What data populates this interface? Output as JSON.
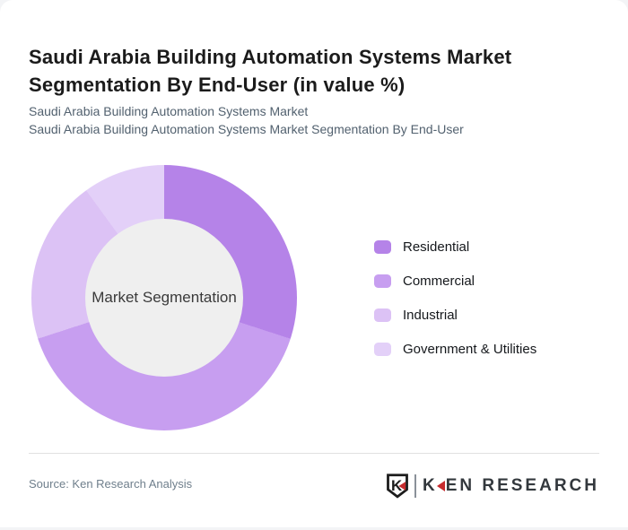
{
  "header": {
    "title": "Saudi Arabia Building Automation Systems Market Segmentation By End-User (in value %)",
    "subtitle_line1": "Saudi Arabia Building Automation Systems Market",
    "subtitle_line2": "Saudi Arabia Building Automation Systems Market Segmentation By End-User"
  },
  "chart_data": {
    "type": "pie",
    "subtype": "donut",
    "title": "Saudi Arabia Building Automation Systems Market Segmentation By End-User (in value %)",
    "center_label": "Market Segmentation",
    "categories": [
      "Residential",
      "Commercial",
      "Industrial",
      "Government & Utilities"
    ],
    "values": [
      30,
      40,
      20,
      10
    ],
    "unit": "percent of value",
    "colors": [
      "#b583e8",
      "#c79ef0",
      "#dcc2f5",
      "#e3d0f8"
    ],
    "start_angle_deg": 0,
    "direction": "clockwise",
    "inner_radius_ratio": 0.595,
    "inner_circle_color": "#efefef",
    "legend_position": "right",
    "data_labels_shown": false
  },
  "footer": {
    "source_text": "Source: Ken Research Analysis",
    "logo": {
      "badge_letter": "K",
      "brand_first_letter": "K",
      "brand_rest": "EN RESEARCH",
      "accent_color": "#c62b2e",
      "text_color": "#33383d"
    }
  }
}
